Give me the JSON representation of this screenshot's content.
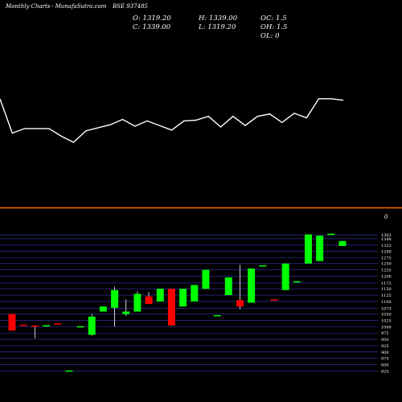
{
  "header": {
    "chart_label": "Monthly Charts",
    "site": "-  MunafaSutra.com",
    "symbol": "BSE 937485"
  },
  "ohlc": {
    "open": "O: 1319.20",
    "high": "H: 1339.00",
    "oc": "OC: 1.5",
    "close": "C: 1339.00",
    "low": "L: 1319.20",
    "oh": "OH: 1.5",
    "ol": "OL: 0"
  },
  "lower_marker": "0",
  "colors": {
    "background": "#000000",
    "up": "#00ff00",
    "down": "#ff0000",
    "line": "#ffffff",
    "separator": "#ff6600",
    "grid": "#3a3ab8"
  },
  "chart_data": [
    {
      "type": "line",
      "title": "",
      "x": [
        1,
        2,
        3,
        4,
        5,
        6,
        7,
        8,
        9,
        10,
        11,
        12,
        13,
        14,
        15,
        16,
        17,
        18,
        19,
        20,
        21,
        22,
        23,
        24,
        25,
        26,
        27,
        28,
        29
      ],
      "values": [
        1319,
        1095,
        1125,
        1125,
        1125,
        1075,
        1035,
        1110,
        1130,
        1150,
        1185,
        1140,
        1175,
        1145,
        1115,
        1175,
        1180,
        1205,
        1135,
        1205,
        1145,
        1205,
        1220,
        1165,
        1225,
        1195,
        1320,
        1320,
        1310
      ],
      "note": "price line (upper panel, no axis labels shown)"
    },
    {
      "type": "candlestick",
      "title": "",
      "y_ticks": [
        "1363",
        "1348",
        "1323",
        "1298",
        "1273",
        "1250",
        "1225",
        "1200",
        "1173",
        "1150",
        "1125",
        "1100",
        "1073",
        "1050",
        "1025",
        "1000",
        "975",
        "950",
        "925",
        "900",
        "875",
        "850",
        "825"
      ],
      "ylim": [
        820,
        1370
      ],
      "candles": [
        {
          "o": 1050,
          "h": 1050,
          "l": 985,
          "c": 985
        },
        {
          "o": 1008,
          "h": 1008,
          "l": 1003,
          "c": 1003
        },
        {
          "o": 1005,
          "h": 1005,
          "l": 954,
          "c": 1003
        },
        {
          "o": 1003,
          "h": 1006,
          "l": 1000,
          "c": 1006
        },
        {
          "o": 1013,
          "h": 1013,
          "l": 1010,
          "c": 1010
        },
        {
          "o": 825,
          "h": 827,
          "l": 822,
          "c": 827
        },
        {
          "o": 998,
          "h": 1002,
          "l": 998,
          "c": 1002
        },
        {
          "o": 968,
          "h": 1050,
          "l": 965,
          "c": 1040
        },
        {
          "o": 1060,
          "h": 1080,
          "l": 1060,
          "c": 1080
        },
        {
          "o": 1075,
          "h": 1158,
          "l": 1000,
          "c": 1145
        },
        {
          "o": 1050,
          "h": 1108,
          "l": 1043,
          "c": 1060
        },
        {
          "o": 1060,
          "h": 1140,
          "l": 1060,
          "c": 1130
        },
        {
          "o": 1120,
          "h": 1138,
          "l": 1090,
          "c": 1090
        },
        {
          "o": 1100,
          "h": 1150,
          "l": 1100,
          "c": 1150
        },
        {
          "o": 1150,
          "h": 1150,
          "l": 1005,
          "c": 1005
        },
        {
          "o": 1080,
          "h": 1150,
          "l": 1080,
          "c": 1150
        },
        {
          "o": 1100,
          "h": 1165,
          "l": 1100,
          "c": 1165
        },
        {
          "o": 1150,
          "h": 1225,
          "l": 1150,
          "c": 1225
        },
        {
          "o": 1043,
          "h": 1046,
          "l": 1043,
          "c": 1046
        },
        {
          "o": 1125,
          "h": 1195,
          "l": 1125,
          "c": 1195
        },
        {
          "o": 1105,
          "h": 1245,
          "l": 1070,
          "c": 1080
        },
        {
          "o": 1095,
          "h": 1230,
          "l": 1095,
          "c": 1230
        },
        {
          "o": 1243,
          "h": 1243,
          "l": 1240,
          "c": 1243
        },
        {
          "o": 1108,
          "h": 1108,
          "l": 1105,
          "c": 1105
        },
        {
          "o": 1145,
          "h": 1250,
          "l": 1145,
          "c": 1250
        },
        {
          "o": 1180,
          "h": 1180,
          "l": 1175,
          "c": 1180
        },
        {
          "o": 1250,
          "h": 1365,
          "l": 1250,
          "c": 1365
        },
        {
          "o": 1260,
          "h": 1360,
          "l": 1260,
          "c": 1360
        },
        {
          "o": 1363,
          "h": 1368,
          "l": 1363,
          "c": 1368
        },
        {
          "o": 1319.2,
          "h": 1339,
          "l": 1319.2,
          "c": 1339
        }
      ]
    }
  ]
}
